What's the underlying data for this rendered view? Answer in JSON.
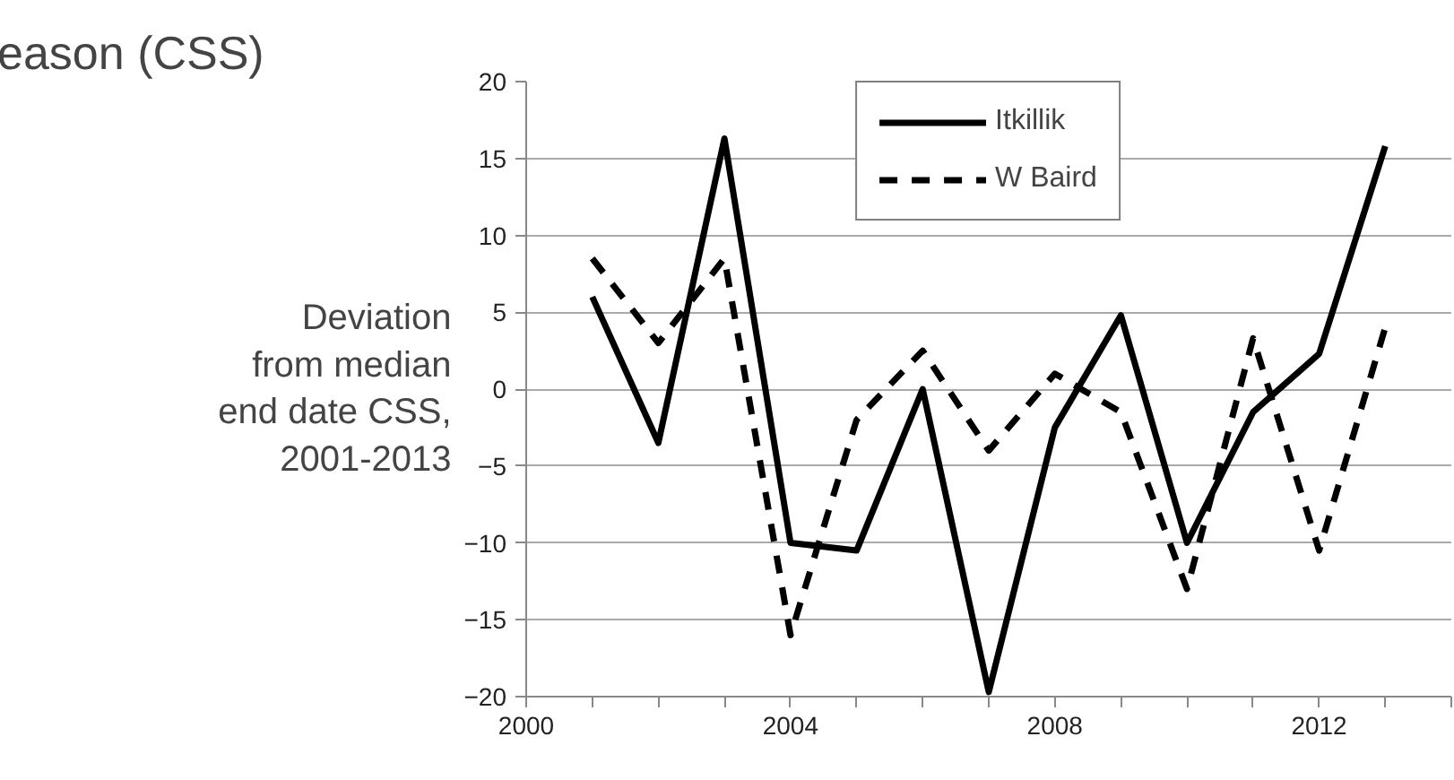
{
  "chart_data": {
    "type": "line",
    "title": "eason (CSS)",
    "ylabel": "Deviation\nfrom median\nend date CSS,\n2001-2013",
    "x": [
      2001,
      2002,
      2003,
      2004,
      2005,
      2006,
      2007,
      2008,
      2009,
      2010,
      2011,
      2012,
      2013
    ],
    "series": [
      {
        "name": "Itkillik",
        "color": "#000000",
        "line_style": "solid",
        "values": [
          6,
          -3.5,
          16.3,
          -10,
          -10.5,
          0,
          -19.7,
          -2.5,
          4.8,
          -10,
          -1.5,
          2.3,
          15.8
        ]
      },
      {
        "name": "W Baird",
        "color": "#000000",
        "line_style": "dashed",
        "values": [
          8.5,
          3,
          8.5,
          -16,
          -2,
          2.5,
          -4,
          1,
          -1.5,
          -13,
          3.3,
          -10.5,
          4
        ]
      }
    ],
    "xlim": [
      2000,
      2014
    ],
    "xticks": [
      2000,
      2004,
      2008,
      2012
    ],
    "ylim": [
      -20,
      20
    ],
    "yticks": [
      -20,
      -15,
      -10,
      -5,
      0,
      5,
      10,
      15,
      20
    ],
    "grid": "y",
    "legend": "top",
    "marker": "none"
  }
}
